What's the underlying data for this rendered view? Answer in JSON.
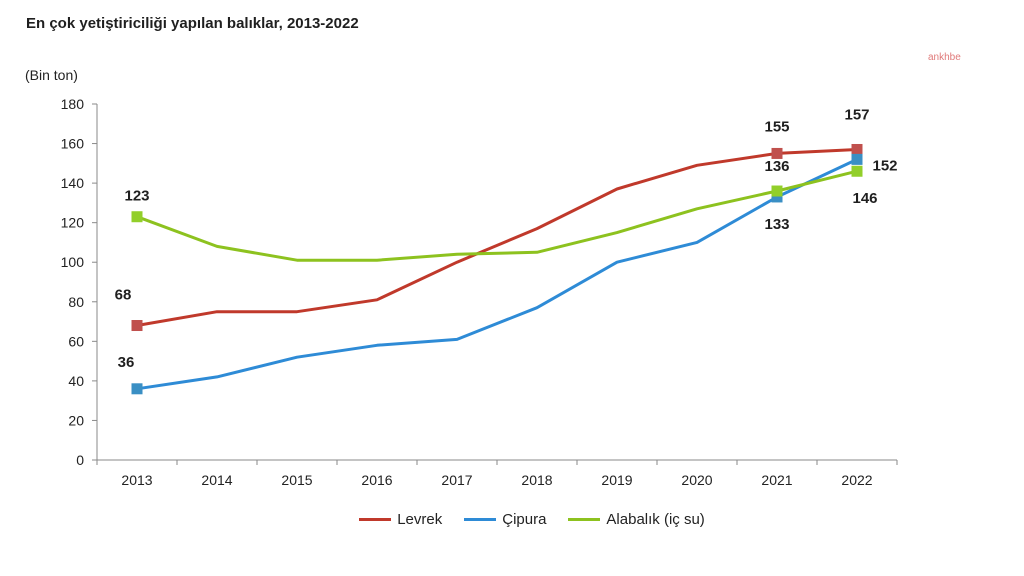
{
  "title": "En çok yetiştiriciliği yapılan balıklar, 2013-2022",
  "watermark": "ankhbe",
  "chart_data": {
    "type": "line",
    "title": "En çok yetiştiriciliği yapılan balıklar, 2013-2022",
    "ylabel": "(Bin ton)",
    "xlabel": "",
    "ylim": [
      0,
      180
    ],
    "yticks": [
      "0",
      "20",
      "40",
      "60",
      "80",
      "100",
      "120",
      "140",
      "160",
      "180"
    ],
    "categories": [
      "2013",
      "2014",
      "2015",
      "2016",
      "2017",
      "2018",
      "2019",
      "2020",
      "2021",
      "2022"
    ],
    "grid": false,
    "legend_position": "bottom",
    "series": [
      {
        "name": "Levrek",
        "color": "#c0392b",
        "marker_color": "#c0504d",
        "values": [
          68,
          75,
          75,
          81,
          100,
          117,
          137,
          149,
          155,
          157
        ]
      },
      {
        "name": "Çipura",
        "color": "#2e8bd6",
        "marker_color": "#3a8fc4",
        "values": [
          36,
          42,
          52,
          58,
          61,
          77,
          100,
          110,
          133,
          152
        ]
      },
      {
        "name": "Alabalık (iç su)",
        "color": "#8dc21f",
        "marker_color": "#92cf2a",
        "values": [
          123,
          108,
          101,
          101,
          104,
          105,
          115,
          127,
          136,
          146
        ]
      }
    ],
    "data_labels": [
      {
        "series": 0,
        "index": 0,
        "text": "68"
      },
      {
        "series": 0,
        "index": 8,
        "text": "155"
      },
      {
        "series": 0,
        "index": 9,
        "text": "157"
      },
      {
        "series": 1,
        "index": 0,
        "text": "36"
      },
      {
        "series": 1,
        "index": 8,
        "text": "133"
      },
      {
        "series": 1,
        "index": 9,
        "text": "152"
      },
      {
        "series": 2,
        "index": 0,
        "text": "123"
      },
      {
        "series": 2,
        "index": 8,
        "text": "136"
      },
      {
        "series": 2,
        "index": 9,
        "text": "146"
      }
    ]
  }
}
